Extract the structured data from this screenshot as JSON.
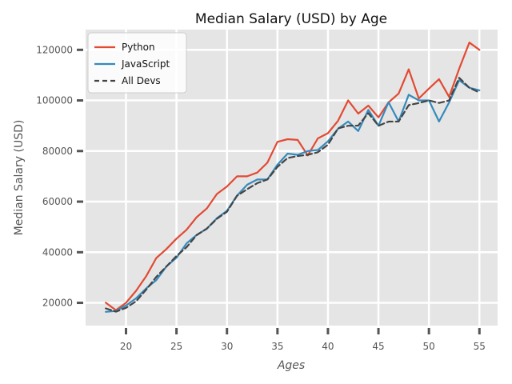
{
  "chart_data": {
    "type": "line",
    "title": "Median Salary (USD) by Age",
    "xlabel": "Ages",
    "ylabel": "Median Salary (USD)",
    "xlim": [
      16,
      56.8
    ],
    "ylim": [
      11000,
      128000
    ],
    "xticks": [
      20,
      25,
      30,
      35,
      40,
      45,
      50,
      55
    ],
    "yticks": [
      20000,
      40000,
      60000,
      80000,
      100000,
      120000
    ],
    "grid": true,
    "legend_position": "top-left",
    "x": [
      18,
      19,
      20,
      21,
      22,
      23,
      24,
      25,
      26,
      27,
      28,
      29,
      30,
      31,
      32,
      33,
      34,
      35,
      36,
      37,
      38,
      39,
      40,
      41,
      42,
      43,
      44,
      45,
      46,
      47,
      48,
      49,
      50,
      51,
      52,
      53,
      54,
      55
    ],
    "series": [
      {
        "name": "Python",
        "color": "#E24A33",
        "dash": "solid",
        "values": [
          20046,
          17100,
          20000,
          24744,
          30500,
          37732,
          41247,
          45372,
          48876,
          53850,
          57287,
          63016,
          65998,
          70003,
          70000,
          71496,
          75370,
          83640,
          84666,
          84392,
          78254,
          85000,
          87038,
          91991,
          100000,
          94796,
          97962,
          93302,
          99240,
          102736,
          112285,
          100771,
          104708,
          108423,
          101407,
          112542,
          122870,
          120000
        ]
      },
      {
        "name": "JavaScript",
        "color": "#348ABD",
        "dash": "solid",
        "values": [
          16446,
          16791,
          18942,
          21780,
          25704,
          29000,
          34372,
          37810,
          43515,
          46823,
          49293,
          53437,
          56373,
          62375,
          66674,
          68745,
          68746,
          74583,
          79000,
          78508,
          79996,
          80403,
          83820,
          88833,
          91660,
          87892,
          96243,
          90000,
          99313,
          91660,
          102264,
          100000,
          100000,
          91660,
          99240,
          108000,
          105000,
          104000
        ]
      },
      {
        "name": "All Devs",
        "color": "#444444",
        "dash": "dashed",
        "values": [
          17784,
          16500,
          18012,
          20628,
          25206,
          30252,
          34368,
          38496,
          42000,
          46752,
          49320,
          53200,
          56000,
          62316,
          64928,
          67317,
          68748,
          73752,
          77232,
          78000,
          78508,
          79536,
          82488,
          88935,
          90000,
          90056,
          95000,
          90000,
          91633,
          91660,
          98150,
          98964,
          100000,
          98988,
          100000,
          108923,
          105000,
          103117
        ]
      }
    ]
  }
}
